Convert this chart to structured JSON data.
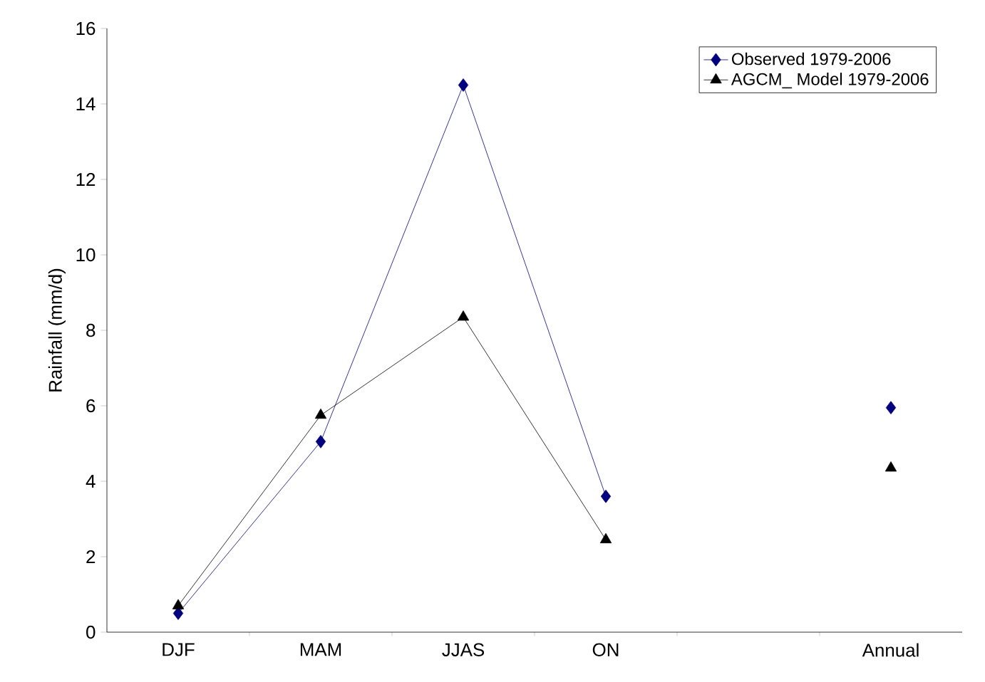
{
  "chart_data": {
    "type": "line",
    "categories": [
      "DJF",
      "MAM",
      "JJAS",
      "ON",
      null,
      "Annual"
    ],
    "ylabel": "Rainfall (mm/d)",
    "ylim": [
      0,
      16
    ],
    "yticks": [
      0,
      2,
      4,
      6,
      8,
      10,
      12,
      14,
      16
    ],
    "legend": "top right",
    "grid": false,
    "series": [
      {
        "name": "Observed 1979-2006",
        "color": "#000080",
        "marker": "diamond",
        "values": [
          0.5,
          5.05,
          14.5,
          3.6,
          null,
          5.95
        ]
      },
      {
        "name": "AGCM_ Model 1979-2006",
        "color": "#000000",
        "marker": "triangle",
        "values": [
          0.7,
          5.75,
          8.35,
          2.45,
          null,
          4.35
        ]
      }
    ]
  }
}
